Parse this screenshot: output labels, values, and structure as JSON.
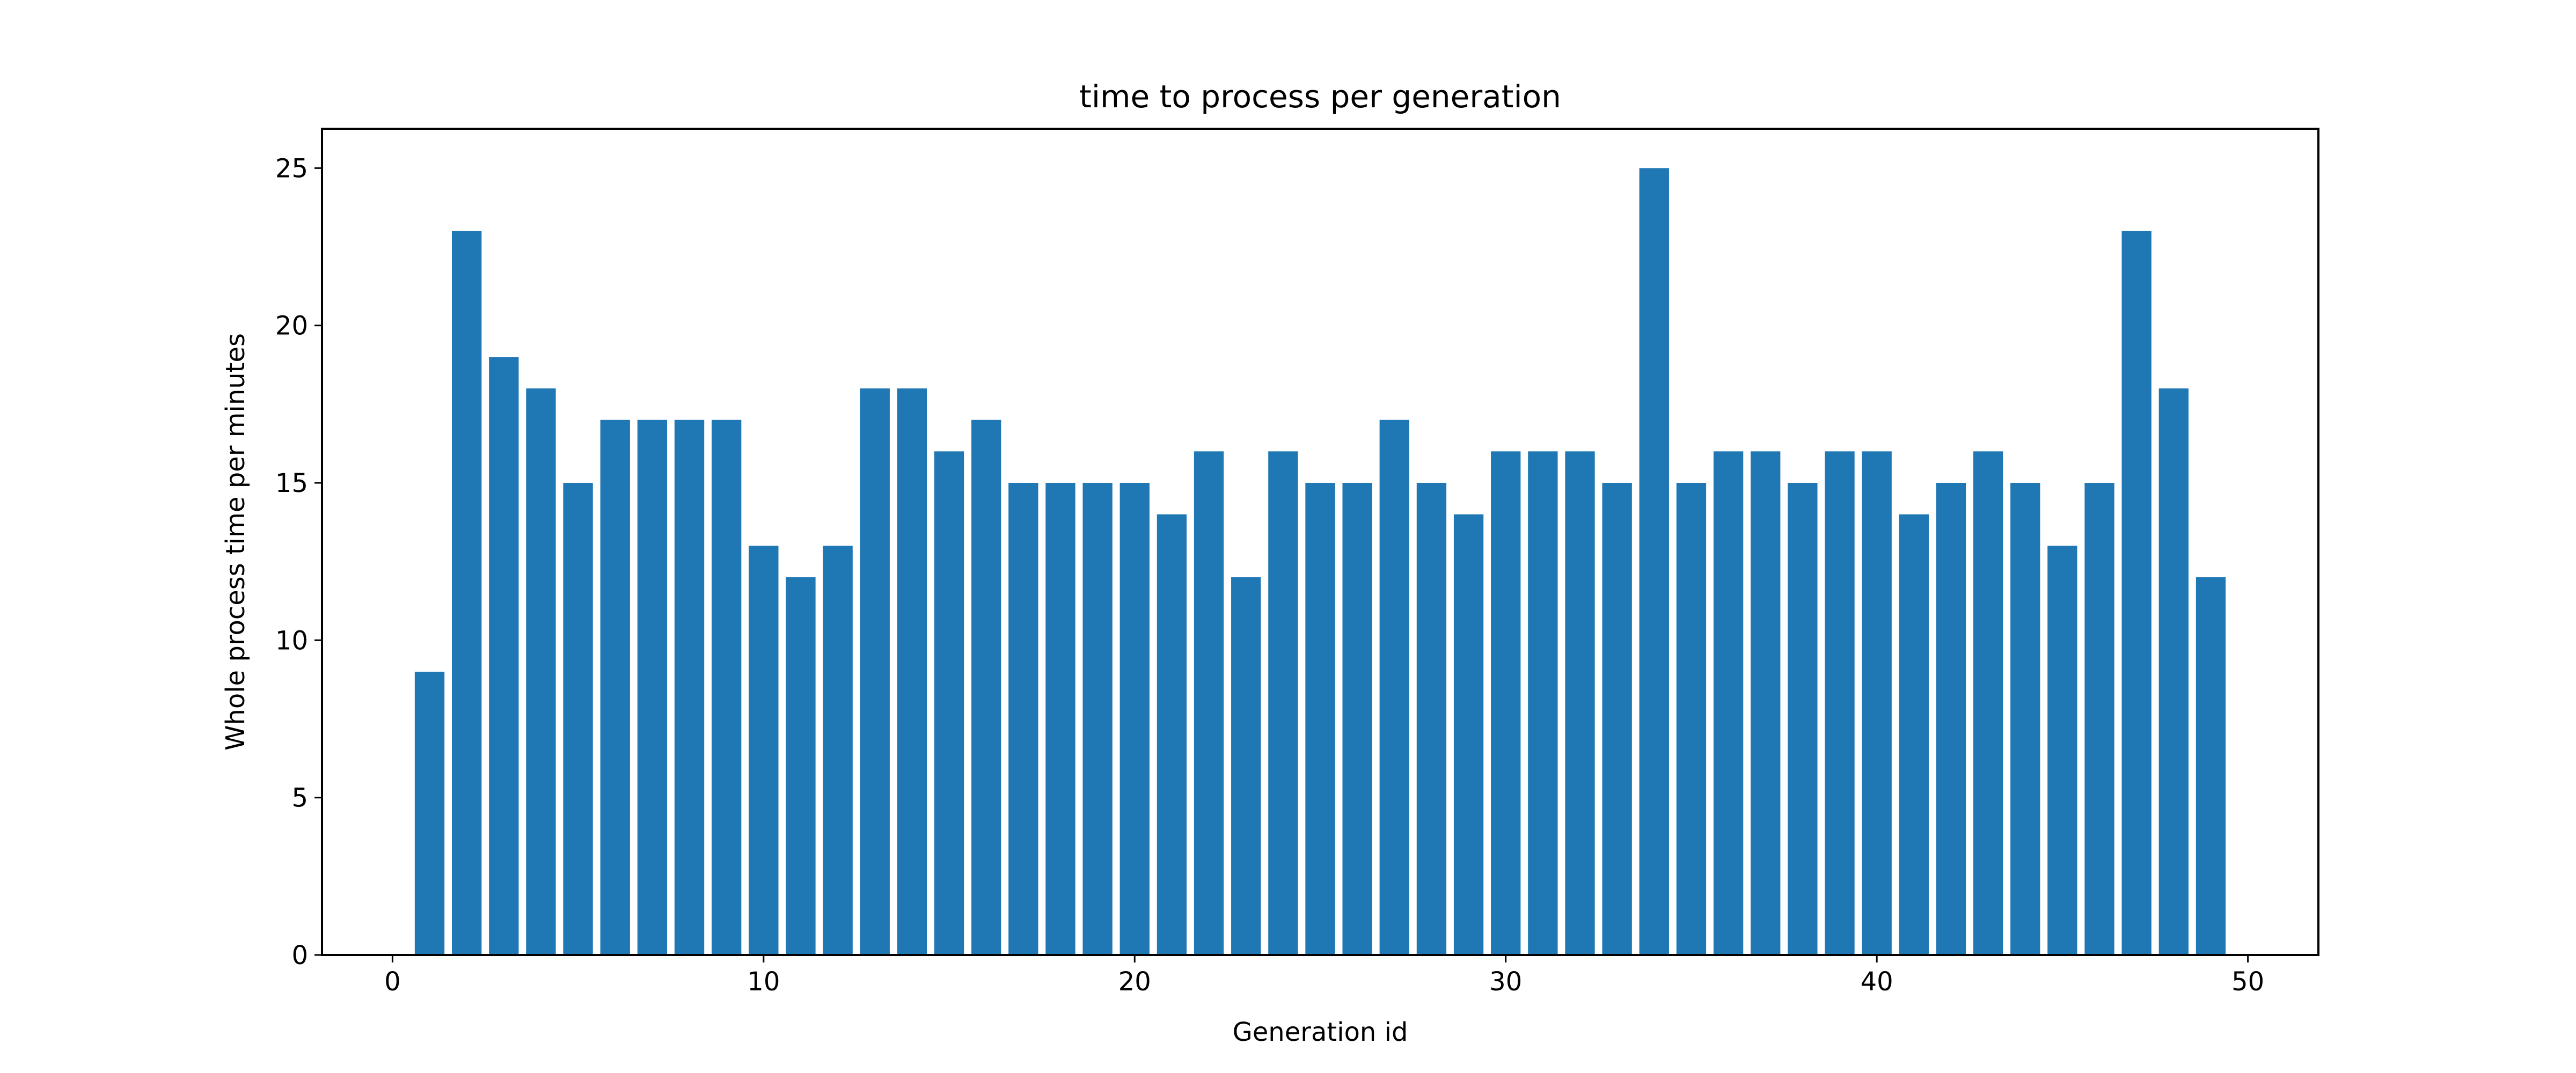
{
  "chart_data": {
    "type": "bar",
    "title": "time to process per generation",
    "xlabel": "Generation id",
    "ylabel": "Whole process time per minutes",
    "x": [
      1,
      2,
      3,
      4,
      5,
      6,
      7,
      8,
      9,
      10,
      11,
      12,
      13,
      14,
      15,
      16,
      17,
      18,
      19,
      20,
      21,
      22,
      23,
      24,
      25,
      26,
      27,
      28,
      29,
      30,
      31,
      32,
      33,
      34,
      35,
      36,
      37,
      38,
      39,
      40,
      41,
      42,
      43,
      44,
      45,
      46,
      47,
      48,
      49
    ],
    "values": [
      9,
      23,
      19,
      18,
      15,
      17,
      17,
      17,
      17,
      13,
      12,
      13,
      18,
      18,
      16,
      17,
      15,
      15,
      15,
      15,
      14,
      16,
      12,
      16,
      15,
      15,
      17,
      15,
      14,
      16,
      16,
      16,
      15,
      25,
      15,
      16,
      16,
      15,
      16,
      16,
      14,
      15,
      16,
      15,
      13,
      15,
      23,
      18,
      12
    ],
    "xlim": [
      -1.9,
      51.9
    ],
    "ylim": [
      0,
      26.25
    ],
    "xticks": [
      0,
      10,
      20,
      30,
      40,
      50
    ],
    "xtick_labels": [
      "0",
      "10",
      "20",
      "30",
      "40",
      "50"
    ],
    "yticks": [
      0,
      5,
      10,
      15,
      20,
      25
    ],
    "ytick_labels": [
      "0",
      "5",
      "10",
      "15",
      "20",
      "25"
    ],
    "bar_width": 0.8,
    "bar_color": "#1f77b4",
    "grid": false,
    "legend": false
  }
}
